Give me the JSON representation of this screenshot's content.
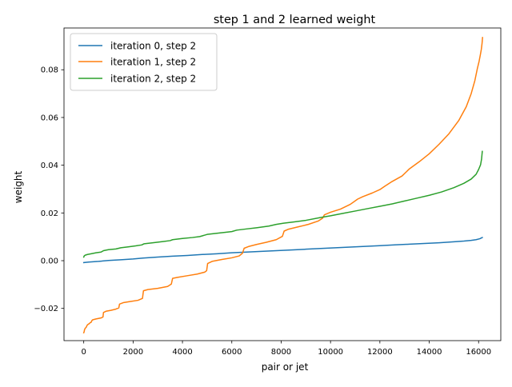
{
  "chart_data": {
    "type": "line",
    "title": "step 1 and 2 learned weight",
    "xlabel": "pair or jet",
    "ylabel": "weight",
    "xlim": [
      -800,
      16900
    ],
    "ylim": [
      -0.0335,
      0.0975
    ],
    "xticks": [
      0,
      2000,
      4000,
      6000,
      8000,
      10000,
      12000,
      14000,
      16000
    ],
    "xtick_labels": [
      "0",
      "2000",
      "4000",
      "6000",
      "8000",
      "10000",
      "12000",
      "14000",
      "16000"
    ],
    "yticks": [
      -0.02,
      0.0,
      0.02,
      0.04,
      0.06,
      0.08
    ],
    "ytick_labels": [
      "−0.02",
      "0.00",
      "0.02",
      "0.04",
      "0.06",
      "0.08"
    ],
    "grid": false,
    "legend_position": "upper-left",
    "series": [
      {
        "name": "iteration 0, step 2",
        "color": "#1f77b4",
        "x": [
          0,
          200,
          600,
          1000,
          1500,
          2000,
          2400,
          3000,
          3600,
          4200,
          4800,
          5400,
          6000,
          6600,
          7200,
          7800,
          8400,
          9000,
          9600,
          10200,
          10800,
          11400,
          12000,
          12600,
          13200,
          13800,
          14400,
          15000,
          15400,
          15700,
          15900,
          16050,
          16150
        ],
        "y": [
          -0.0008,
          -0.0006,
          -0.0003,
          0.0001,
          0.0004,
          0.0007,
          0.0011,
          0.0015,
          0.0019,
          0.0022,
          0.0026,
          0.0029,
          0.0033,
          0.0036,
          0.0039,
          0.0042,
          0.0045,
          0.0048,
          0.0051,
          0.0054,
          0.0057,
          0.006,
          0.0063,
          0.0066,
          0.0069,
          0.0072,
          0.0075,
          0.0079,
          0.0082,
          0.0085,
          0.0088,
          0.0092,
          0.0097
        ]
      },
      {
        "name": "iteration 1, step 2",
        "color": "#ff7f0e",
        "x": [
          0,
          15,
          30,
          60,
          100,
          130,
          160,
          220,
          260,
          300,
          330,
          360,
          500,
          700,
          780,
          800,
          900,
          1100,
          1300,
          1420,
          1450,
          1600,
          1900,
          2200,
          2380,
          2420,
          2600,
          3000,
          3400,
          3550,
          3600,
          3800,
          4200,
          4600,
          4900,
          4980,
          5020,
          5200,
          5600,
          6000,
          6300,
          6430,
          6500,
          6700,
          7000,
          7400,
          7800,
          8050,
          8120,
          8300,
          8700,
          9100,
          9500,
          9680,
          9750,
          10000,
          10400,
          10800,
          11100,
          11300,
          11700,
          12000,
          12200,
          12500,
          12900,
          13200,
          13600,
          14000,
          14400,
          14800,
          15200,
          15500,
          15700,
          15850,
          15950,
          16020,
          16070,
          16110,
          16140,
          16160
        ],
        "y": [
          -0.0302,
          -0.0298,
          -0.029,
          -0.0283,
          -0.0279,
          -0.0272,
          -0.0268,
          -0.0264,
          -0.026,
          -0.0258,
          -0.0251,
          -0.0248,
          -0.0244,
          -0.024,
          -0.0236,
          -0.0217,
          -0.0212,
          -0.0208,
          -0.0203,
          -0.0198,
          -0.0182,
          -0.0176,
          -0.0171,
          -0.0166,
          -0.0158,
          -0.0126,
          -0.0121,
          -0.0116,
          -0.0108,
          -0.0098,
          -0.0074,
          -0.007,
          -0.0063,
          -0.0056,
          -0.0048,
          -0.0042,
          -0.0012,
          -0.0003,
          0.0005,
          0.0012,
          0.002,
          0.0031,
          0.0052,
          0.006,
          0.0068,
          0.0077,
          0.0088,
          0.0102,
          0.0124,
          0.0132,
          0.0142,
          0.0152,
          0.0166,
          0.0178,
          0.0192,
          0.0203,
          0.0216,
          0.0236,
          0.0258,
          0.0268,
          0.0284,
          0.0298,
          0.0312,
          0.0332,
          0.0355,
          0.0385,
          0.0415,
          0.0448,
          0.0488,
          0.0532,
          0.0588,
          0.0645,
          0.07,
          0.0755,
          0.0805,
          0.0835,
          0.0862,
          0.0885,
          0.091,
          0.0935
        ]
      },
      {
        "name": "iteration 2, step 2",
        "color": "#2ca02c",
        "x": [
          0,
          20,
          60,
          150,
          300,
          500,
          700,
          800,
          1000,
          1300,
          1500,
          1800,
          2100,
          2350,
          2450,
          2800,
          3200,
          3500,
          3600,
          4000,
          4400,
          4700,
          4800,
          5000,
          5500,
          6000,
          6200,
          6600,
          7000,
          7500,
          7800,
          8100,
          8500,
          9000,
          9600,
          10000,
          10500,
          11000,
          11500,
          12000,
          12500,
          13000,
          13500,
          14000,
          14500,
          15000,
          15400,
          15700,
          15900,
          16000,
          16080,
          16120,
          16150
        ],
        "y": [
          0.0015,
          0.002,
          0.0023,
          0.0026,
          0.0029,
          0.0033,
          0.0036,
          0.0042,
          0.0046,
          0.0049,
          0.0054,
          0.0058,
          0.0062,
          0.0066,
          0.0071,
          0.0075,
          0.008,
          0.0084,
          0.0088,
          0.0093,
          0.0097,
          0.0101,
          0.0104,
          0.011,
          0.0116,
          0.0122,
          0.0128,
          0.0133,
          0.0138,
          0.0145,
          0.0152,
          0.0157,
          0.0162,
          0.0169,
          0.0181,
          0.0188,
          0.0198,
          0.0208,
          0.0218,
          0.0228,
          0.0238,
          0.025,
          0.0262,
          0.0274,
          0.0288,
          0.0306,
          0.0324,
          0.0342,
          0.0362,
          0.0382,
          0.0402,
          0.0425,
          0.0458
        ]
      }
    ]
  }
}
